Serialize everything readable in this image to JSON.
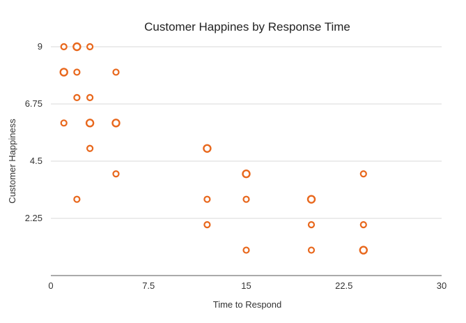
{
  "chart_data": {
    "type": "scatter",
    "title": "Customer Happines by Response Time",
    "xlabel": "Time to Respond",
    "ylabel": "Customer Happiness",
    "xlim": [
      0,
      30
    ],
    "ylim": [
      0,
      9
    ],
    "xticks": [
      0,
      7.5,
      15,
      22.5,
      30
    ],
    "xtick_labels": [
      "0",
      "7.5",
      "15",
      "22.5",
      "30"
    ],
    "yticks": [
      2.25,
      4.5,
      6.75,
      9
    ],
    "ytick_labels": [
      "2.25",
      "4.5",
      "6.75",
      "9"
    ],
    "grid": "horizontal",
    "legend": "none",
    "marker": "hollow-circle",
    "color": "#e8671c",
    "points": [
      {
        "x": 1,
        "y": 9,
        "size": "small"
      },
      {
        "x": 2,
        "y": 9,
        "size": "large"
      },
      {
        "x": 3,
        "y": 9,
        "size": "small"
      },
      {
        "x": 1,
        "y": 8,
        "size": "large"
      },
      {
        "x": 2,
        "y": 8,
        "size": "small"
      },
      {
        "x": 5,
        "y": 8,
        "size": "small"
      },
      {
        "x": 2,
        "y": 7,
        "size": "small"
      },
      {
        "x": 3,
        "y": 7,
        "size": "small"
      },
      {
        "x": 1,
        "y": 6,
        "size": "small"
      },
      {
        "x": 3,
        "y": 6,
        "size": "large"
      },
      {
        "x": 5,
        "y": 6,
        "size": "large"
      },
      {
        "x": 3,
        "y": 5,
        "size": "small"
      },
      {
        "x": 5,
        "y": 4,
        "size": "small"
      },
      {
        "x": 2,
        "y": 3,
        "size": "small"
      },
      {
        "x": 12,
        "y": 5,
        "size": "large"
      },
      {
        "x": 12,
        "y": 3,
        "size": "small"
      },
      {
        "x": 12,
        "y": 2,
        "size": "small"
      },
      {
        "x": 15,
        "y": 4,
        "size": "large"
      },
      {
        "x": 15,
        "y": 3,
        "size": "small"
      },
      {
        "x": 15,
        "y": 1,
        "size": "small"
      },
      {
        "x": 20,
        "y": 3,
        "size": "large"
      },
      {
        "x": 20,
        "y": 2,
        "size": "small"
      },
      {
        "x": 20,
        "y": 1,
        "size": "small"
      },
      {
        "x": 24,
        "y": 4,
        "size": "small"
      },
      {
        "x": 24,
        "y": 2,
        "size": "small"
      },
      {
        "x": 24,
        "y": 1,
        "size": "large"
      }
    ]
  }
}
